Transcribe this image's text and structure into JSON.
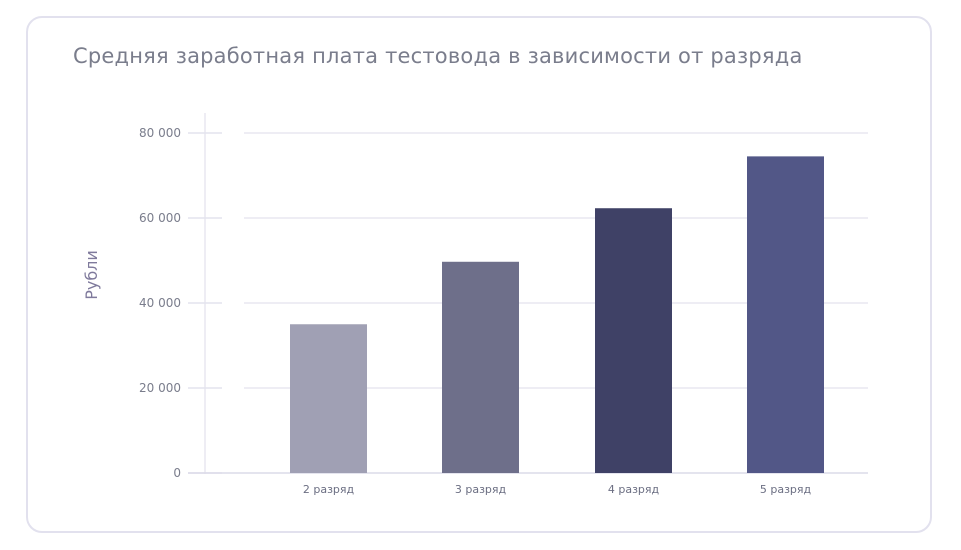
{
  "chart_data": {
    "type": "bar",
    "title": "Средняя заработная плата тестовода в зависимости от разряда",
    "xlabel": "",
    "ylabel": "Рубли",
    "categories": [
      "2 разряд",
      "3 разряд",
      "4 разряд",
      "5 разряд"
    ],
    "values": [
      35000,
      49700,
      62300,
      74500
    ],
    "colors": [
      "#a0a0b4",
      "#6e6f8a",
      "#3f4166",
      "#525787"
    ],
    "ylim": [
      0,
      80000
    ],
    "yticks": [
      0,
      20000,
      40000,
      60000,
      80000
    ],
    "ytick_labels": [
      "0",
      "20 000",
      "40 000",
      "60 000",
      "80 000"
    ],
    "grid": true,
    "legend": "none"
  }
}
